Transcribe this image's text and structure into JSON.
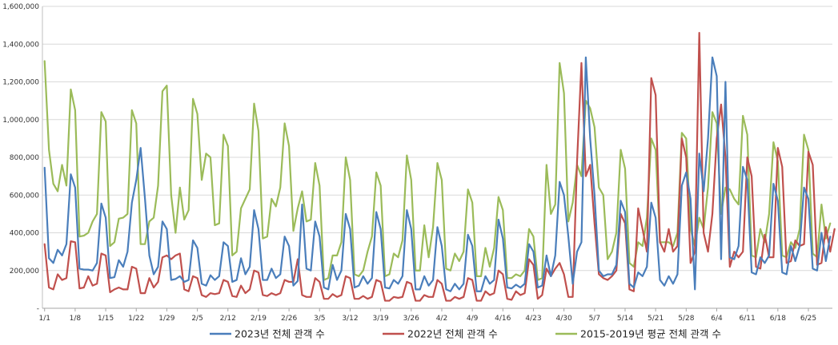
{
  "chart_data": {
    "type": "line",
    "title": "",
    "xlabel": "",
    "ylabel": "",
    "ylim": [
      0,
      1600000
    ],
    "yticks": [
      0,
      200000,
      400000,
      600000,
      800000,
      1000000,
      1200000,
      1400000,
      1600000
    ],
    "ytick_labels": [
      "-",
      "200,000",
      "400,000",
      "600,000",
      "800,000",
      "1,000,000",
      "1,200,000",
      "1,400,000",
      "1,600,000"
    ],
    "grid": true,
    "legend_position": "bottom",
    "x_tick_labels": [
      "1/1",
      "1/8",
      "1/15",
      "1/22",
      "1/29",
      "2/5",
      "2/12",
      "2/19",
      "2/26",
      "3/5",
      "3/12",
      "3/19",
      "3/26",
      "4/2",
      "4/9",
      "4/16",
      "4/23",
      "4/30",
      "5/7",
      "5/14",
      "5/21",
      "5/28",
      "6/4",
      "6/11",
      "6/18",
      "6/25"
    ],
    "day_count": 181,
    "series": [
      {
        "name": "2023년 전체 관객 수",
        "color": "#4a7ebb",
        "values": [
          745000,
          265000,
          240000,
          310000,
          280000,
          340000,
          710000,
          640000,
          210000,
          205000,
          205000,
          200000,
          240000,
          555000,
          480000,
          160000,
          165000,
          255000,
          220000,
          300000,
          560000,
          680000,
          850000,
          580000,
          280000,
          180000,
          220000,
          460000,
          420000,
          150000,
          155000,
          170000,
          140000,
          150000,
          360000,
          320000,
          130000,
          120000,
          175000,
          150000,
          170000,
          350000,
          330000,
          140000,
          150000,
          265000,
          180000,
          220000,
          520000,
          420000,
          150000,
          150000,
          210000,
          160000,
          180000,
          380000,
          330000,
          120000,
          145000,
          550000,
          210000,
          200000,
          460000,
          380000,
          110000,
          100000,
          230000,
          150000,
          200000,
          500000,
          420000,
          110000,
          120000,
          170000,
          130000,
          160000,
          510000,
          420000,
          110000,
          105000,
          150000,
          130000,
          170000,
          520000,
          420000,
          100000,
          100000,
          170000,
          120000,
          150000,
          430000,
          330000,
          100000,
          90000,
          130000,
          100000,
          130000,
          390000,
          330000,
          90000,
          90000,
          170000,
          130000,
          150000,
          470000,
          370000,
          110000,
          105000,
          125000,
          110000,
          130000,
          340000,
          300000,
          110000,
          120000,
          280000,
          170000,
          280000,
          670000,
          600000,
          380000,
          130000,
          300000,
          350000,
          1330000,
          900000,
          600000,
          200000,
          170000,
          180000,
          180000,
          230000,
          570000,
          510000,
          130000,
          110000,
          190000,
          170000,
          220000,
          560000,
          480000,
          150000,
          120000,
          170000,
          130000,
          180000,
          650000,
          720000,
          580000,
          100000,
          820000,
          620000,
          900000,
          1330000,
          1230000,
          260000,
          1200000,
          270000,
          260000,
          330000,
          750000,
          680000,
          190000,
          180000,
          270000,
          240000,
          280000,
          660000,
          570000,
          190000,
          180000,
          330000,
          250000,
          330000,
          640000,
          580000,
          210000,
          200000,
          400000,
          250000,
          380000
        ]
      },
      {
        "name": "2022년 전체 관객 수",
        "color": "#c0504d",
        "values": [
          340000,
          110000,
          100000,
          180000,
          150000,
          160000,
          355000,
          350000,
          105000,
          110000,
          170000,
          120000,
          130000,
          290000,
          280000,
          85000,
          100000,
          110000,
          100000,
          100000,
          220000,
          210000,
          80000,
          80000,
          160000,
          110000,
          140000,
          270000,
          280000,
          260000,
          280000,
          290000,
          100000,
          90000,
          170000,
          160000,
          70000,
          60000,
          80000,
          75000,
          80000,
          150000,
          140000,
          65000,
          60000,
          120000,
          80000,
          100000,
          200000,
          190000,
          70000,
          65000,
          80000,
          70000,
          80000,
          150000,
          140000,
          140000,
          260000,
          70000,
          60000,
          60000,
          160000,
          140000,
          50000,
          50000,
          75000,
          60000,
          70000,
          170000,
          160000,
          50000,
          50000,
          65000,
          50000,
          60000,
          150000,
          140000,
          40000,
          40000,
          60000,
          55000,
          60000,
          140000,
          130000,
          40000,
          40000,
          70000,
          60000,
          60000,
          150000,
          130000,
          40000,
          40000,
          60000,
          50000,
          60000,
          160000,
          150000,
          40000,
          40000,
          90000,
          70000,
          80000,
          200000,
          180000,
          50000,
          45000,
          90000,
          70000,
          80000,
          260000,
          230000,
          50000,
          70000,
          210000,
          170000,
          210000,
          240000,
          180000,
          60000,
          60000,
          780000,
          1300000,
          700000,
          760000,
          450000,
          180000,
          160000,
          150000,
          170000,
          200000,
          500000,
          450000,
          100000,
          90000,
          530000,
          420000,
          300000,
          1220000,
          1130000,
          350000,
          300000,
          420000,
          300000,
          330000,
          900000,
          800000,
          240000,
          300000,
          1460000,
          400000,
          300000,
          500000,
          900000,
          1080000,
          800000,
          220000,
          300000,
          270000,
          300000,
          800000,
          700000,
          220000,
          210000,
          390000,
          270000,
          270000,
          850000,
          750000,
          240000,
          250000,
          360000,
          330000,
          340000,
          830000,
          760000,
          230000,
          240000,
          430000,
          300000,
          420000
        ]
      },
      {
        "name": "2015-2019년 평균 전체 관객 수",
        "color": "#9bbb59",
        "values": [
          1310000,
          840000,
          660000,
          620000,
          760000,
          650000,
          1160000,
          1050000,
          380000,
          385000,
          400000,
          460000,
          500000,
          1040000,
          990000,
          330000,
          350000,
          475000,
          480000,
          500000,
          1050000,
          980000,
          340000,
          340000,
          460000,
          480000,
          650000,
          1150000,
          1180000,
          600000,
          400000,
          640000,
          470000,
          520000,
          1110000,
          1030000,
          680000,
          820000,
          800000,
          440000,
          450000,
          920000,
          860000,
          280000,
          300000,
          530000,
          580000,
          630000,
          1085000,
          940000,
          370000,
          380000,
          580000,
          540000,
          640000,
          980000,
          860000,
          410000,
          530000,
          620000,
          460000,
          470000,
          770000,
          650000,
          150000,
          160000,
          280000,
          280000,
          350000,
          800000,
          680000,
          180000,
          170000,
          200000,
          300000,
          380000,
          720000,
          650000,
          170000,
          180000,
          290000,
          270000,
          360000,
          810000,
          680000,
          200000,
          200000,
          440000,
          270000,
          430000,
          770000,
          680000,
          210000,
          200000,
          290000,
          250000,
          300000,
          630000,
          560000,
          170000,
          170000,
          320000,
          220000,
          320000,
          590000,
          520000,
          160000,
          160000,
          180000,
          170000,
          200000,
          420000,
          380000,
          150000,
          160000,
          760000,
          500000,
          550000,
          1300000,
          1140000,
          460000,
          560000,
          760000,
          700000,
          1100000,
          1060000,
          960000,
          640000,
          600000,
          260000,
          300000,
          400000,
          840000,
          740000,
          240000,
          220000,
          350000,
          330000,
          480000,
          900000,
          840000,
          350000,
          350000,
          350000,
          330000,
          400000,
          930000,
          900000,
          420000,
          330000,
          480000,
          420000,
          640000,
          1040000,
          980000,
          500000,
          640000,
          630000,
          580000,
          550000,
          1020000,
          920000,
          280000,
          270000,
          420000,
          350000,
          500000,
          880000,
          780000,
          280000,
          270000,
          350000,
          320000,
          420000,
          920000,
          840000,
          290000,
          270000,
          550000,
          370000,
          450000
        ]
      }
    ]
  }
}
